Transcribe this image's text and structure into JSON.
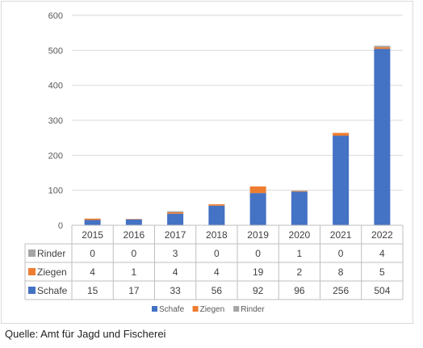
{
  "source_note": "Quelle: Amt für Jagd und Fischerei",
  "colors": {
    "Schafe": "#4472c4",
    "Ziegen": "#ed7d31",
    "Rinder": "#a5a5a5",
    "grid": "#d9d9d9"
  },
  "chart_data": {
    "type": "bar",
    "stacked": true,
    "categories": [
      "2015",
      "2016",
      "2017",
      "2018",
      "2019",
      "2020",
      "2021",
      "2022"
    ],
    "series": [
      {
        "name": "Schafe",
        "values": [
          15,
          17,
          33,
          56,
          92,
          96,
          256,
          504
        ]
      },
      {
        "name": "Ziegen",
        "values": [
          4,
          1,
          4,
          4,
          19,
          2,
          8,
          5
        ]
      },
      {
        "name": "Rinder",
        "values": [
          0,
          0,
          3,
          0,
          0,
          1,
          0,
          4
        ]
      }
    ],
    "yticks": [
      0,
      100,
      200,
      300,
      400,
      500,
      600
    ],
    "ylim": [
      0,
      600
    ],
    "grid": true,
    "data_table": true,
    "table_row_order": [
      "Rinder",
      "Ziegen",
      "Schafe"
    ],
    "legend": {
      "position": "bottom",
      "entries": [
        "Schafe",
        "Ziegen",
        "Rinder"
      ]
    }
  }
}
